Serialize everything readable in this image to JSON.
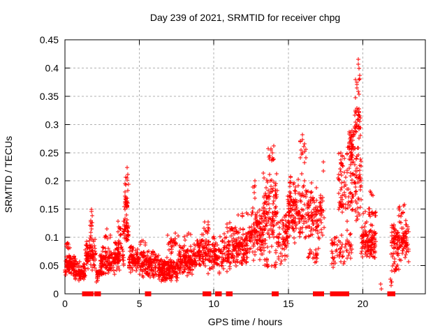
{
  "title": "Day 239 of 2021, SRMTID for receiver chpg",
  "colors": {
    "marker": "#ff0000",
    "grid": "#b0b0b0",
    "axis": "#000000",
    "background": "#ffffff",
    "text": "#000000"
  },
  "chart_data": {
    "type": "scatter",
    "title": "Day 239 of 2021, SRMTID for receiver chpg",
    "xlabel": "GPS time / hours",
    "ylabel": "SRMTID / TECUs",
    "xlim": [
      0,
      24.2
    ],
    "ylim": [
      0,
      0.45
    ],
    "grid": true,
    "legend": "none",
    "marker": "plus",
    "x_ticks": [
      {
        "value": 0,
        "label": "0"
      },
      {
        "value": 5,
        "label": "5"
      },
      {
        "value": 10,
        "label": "10"
      },
      {
        "value": 15,
        "label": "15"
      },
      {
        "value": 20,
        "label": "20"
      }
    ],
    "y_ticks": [
      {
        "value": 0,
        "label": "0"
      },
      {
        "value": 0.05,
        "label": "0.05"
      },
      {
        "value": 0.1,
        "label": "0.1"
      },
      {
        "value": 0.15,
        "label": "0.15"
      },
      {
        "value": 0.2,
        "label": "0.2"
      },
      {
        "value": 0.25,
        "label": "0.25"
      },
      {
        "value": 0.3,
        "label": "0.3"
      },
      {
        "value": 0.35,
        "label": "0.35"
      },
      {
        "value": 0.4,
        "label": "0.4"
      },
      {
        "value": 0.45,
        "label": "0.45"
      }
    ],
    "peak": {
      "x": 19.7,
      "y": 0.41
    },
    "clusters": [
      {
        "x0": 0.0,
        "x1": 0.7,
        "y0": 0.03,
        "y1": 0.075,
        "n": 90
      },
      {
        "x0": 0.05,
        "x1": 0.35,
        "y0": 0.075,
        "y1": 0.095,
        "n": 8
      },
      {
        "x0": 0.7,
        "x1": 1.35,
        "y0": 0.02,
        "y1": 0.06,
        "n": 70
      },
      {
        "x0": 1.35,
        "x1": 2.05,
        "y0": 0.035,
        "y1": 0.105,
        "n": 85
      },
      {
        "x0": 1.7,
        "x1": 1.87,
        "y0": 0.1,
        "y1": 0.157,
        "n": 12
      },
      {
        "x0": 2.05,
        "x1": 2.35,
        "y0": 0.02,
        "y1": 0.048,
        "n": 25
      },
      {
        "x0": 2.35,
        "x1": 3.35,
        "y0": 0.03,
        "y1": 0.085,
        "n": 115
      },
      {
        "x0": 2.5,
        "x1": 3.25,
        "y0": 0.088,
        "y1": 0.115,
        "n": 7
      },
      {
        "x0": 3.35,
        "x1": 3.95,
        "y0": 0.04,
        "y1": 0.1,
        "n": 75
      },
      {
        "x0": 3.5,
        "x1": 3.92,
        "y0": 0.1,
        "y1": 0.135,
        "n": 10
      },
      {
        "x0": 3.95,
        "x1": 4.3,
        "y0": 0.085,
        "y1": 0.15,
        "n": 35
      },
      {
        "x0": 4.0,
        "x1": 4.22,
        "y0": 0.145,
        "y1": 0.175,
        "n": 25
      },
      {
        "x0": 4.02,
        "x1": 4.25,
        "y0": 0.175,
        "y1": 0.228,
        "n": 10
      },
      {
        "x0": 4.3,
        "x1": 5.0,
        "y0": 0.035,
        "y1": 0.09,
        "n": 85
      },
      {
        "x0": 5.0,
        "x1": 6.3,
        "y0": 0.025,
        "y1": 0.082,
        "n": 135
      },
      {
        "x0": 5.05,
        "x1": 5.5,
        "y0": 0.082,
        "y1": 0.097,
        "n": 6
      },
      {
        "x0": 6.3,
        "x1": 7.6,
        "y0": 0.02,
        "y1": 0.065,
        "n": 175
      },
      {
        "x0": 6.9,
        "x1": 7.6,
        "y0": 0.065,
        "y1": 0.12,
        "n": 25
      },
      {
        "x0": 7.6,
        "x1": 8.6,
        "y0": 0.03,
        "y1": 0.09,
        "n": 115
      },
      {
        "x0": 8.0,
        "x1": 8.55,
        "y0": 0.09,
        "y1": 0.112,
        "n": 5
      },
      {
        "x0": 8.6,
        "x1": 9.8,
        "y0": 0.035,
        "y1": 0.11,
        "n": 120
      },
      {
        "x0": 9.3,
        "x1": 9.7,
        "y0": 0.1,
        "y1": 0.132,
        "n": 10
      },
      {
        "x0": 9.8,
        "x1": 11.2,
        "y0": 0.035,
        "y1": 0.11,
        "n": 120
      },
      {
        "x0": 10.85,
        "x1": 11.15,
        "y0": 0.1,
        "y1": 0.128,
        "n": 8
      },
      {
        "x0": 11.2,
        "x1": 12.4,
        "y0": 0.045,
        "y1": 0.125,
        "n": 130
      },
      {
        "x0": 11.6,
        "x1": 12.35,
        "y0": 0.128,
        "y1": 0.152,
        "n": 7
      },
      {
        "x0": 12.4,
        "x1": 13.3,
        "y0": 0.055,
        "y1": 0.16,
        "n": 120
      },
      {
        "x0": 12.55,
        "x1": 12.8,
        "y0": 0.165,
        "y1": 0.205,
        "n": 6
      },
      {
        "x0": 13.3,
        "x1": 14.25,
        "y0": 0.07,
        "y1": 0.22,
        "n": 130
      },
      {
        "x0": 13.5,
        "x1": 14.05,
        "y0": 0.22,
        "y1": 0.272,
        "n": 12
      },
      {
        "x0": 13.35,
        "x1": 14.2,
        "y0": 0.04,
        "y1": 0.07,
        "n": 15
      },
      {
        "x0": 14.25,
        "x1": 14.95,
        "y0": 0.05,
        "y1": 0.15,
        "n": 70
      },
      {
        "x0": 14.95,
        "x1": 16.25,
        "y0": 0.08,
        "y1": 0.22,
        "n": 150
      },
      {
        "x0": 15.75,
        "x1": 16.2,
        "y0": 0.22,
        "y1": 0.29,
        "n": 15
      },
      {
        "x0": 16.25,
        "x1": 17.45,
        "y0": 0.09,
        "y1": 0.2,
        "n": 110
      },
      {
        "x0": 16.3,
        "x1": 17.05,
        "y0": 0.05,
        "y1": 0.09,
        "n": 20
      },
      {
        "x0": 17.25,
        "x1": 17.4,
        "y0": 0.215,
        "y1": 0.235,
        "n": 2
      },
      {
        "x0": 17.9,
        "x1": 18.35,
        "y0": 0.04,
        "y1": 0.11,
        "n": 25
      },
      {
        "x0": 18.35,
        "x1": 19.9,
        "y0": 0.12,
        "y1": 0.28,
        "n": 150
      },
      {
        "x0": 18.4,
        "x1": 19.3,
        "y0": 0.05,
        "y1": 0.12,
        "n": 40
      },
      {
        "x0": 19.0,
        "x1": 19.4,
        "y0": 0.235,
        "y1": 0.3,
        "n": 35
      },
      {
        "x0": 19.45,
        "x1": 19.85,
        "y0": 0.275,
        "y1": 0.335,
        "n": 35
      },
      {
        "x0": 19.5,
        "x1": 19.8,
        "y0": 0.34,
        "y1": 0.39,
        "n": 10
      },
      {
        "x0": 19.62,
        "x1": 19.78,
        "y0": 0.395,
        "y1": 0.415,
        "n": 3
      },
      {
        "x0": 19.9,
        "x1": 20.9,
        "y0": 0.06,
        "y1": 0.12,
        "n": 120
      },
      {
        "x0": 20.0,
        "x1": 20.9,
        "y0": 0.12,
        "y1": 0.16,
        "n": 20
      },
      {
        "x0": 20.3,
        "x1": 20.75,
        "y0": 0.16,
        "y1": 0.19,
        "n": 5
      },
      {
        "x0": 21.15,
        "x1": 21.35,
        "y0": 0.002,
        "y1": 0.02,
        "n": 2
      },
      {
        "x0": 21.85,
        "x1": 22.05,
        "y0": 0.005,
        "y1": 0.03,
        "n": 4
      },
      {
        "x0": 21.9,
        "x1": 23.1,
        "y0": 0.055,
        "y1": 0.135,
        "n": 130
      },
      {
        "x0": 22.35,
        "x1": 22.8,
        "y0": 0.135,
        "y1": 0.165,
        "n": 10
      },
      {
        "x0": 21.95,
        "x1": 22.4,
        "y0": 0.035,
        "y1": 0.055,
        "n": 12
      }
    ],
    "baseline_marks": [
      {
        "x0": 1.3,
        "x1": 1.78
      },
      {
        "x0": 2.1,
        "x1": 2.27
      },
      {
        "x0": 5.5,
        "x1": 5.66
      },
      {
        "x0": 9.38,
        "x1": 9.68
      },
      {
        "x0": 10.22,
        "x1": 10.38
      },
      {
        "x0": 10.95,
        "x1": 11.12
      },
      {
        "x0": 14.02,
        "x1": 14.2
      },
      {
        "x0": 16.8,
        "x1": 17.02
      },
      {
        "x0": 17.1,
        "x1": 17.25
      },
      {
        "x0": 17.93,
        "x1": 18.06
      },
      {
        "x0": 18.22,
        "x1": 18.95
      },
      {
        "x0": 21.78,
        "x1": 22.05
      }
    ]
  }
}
